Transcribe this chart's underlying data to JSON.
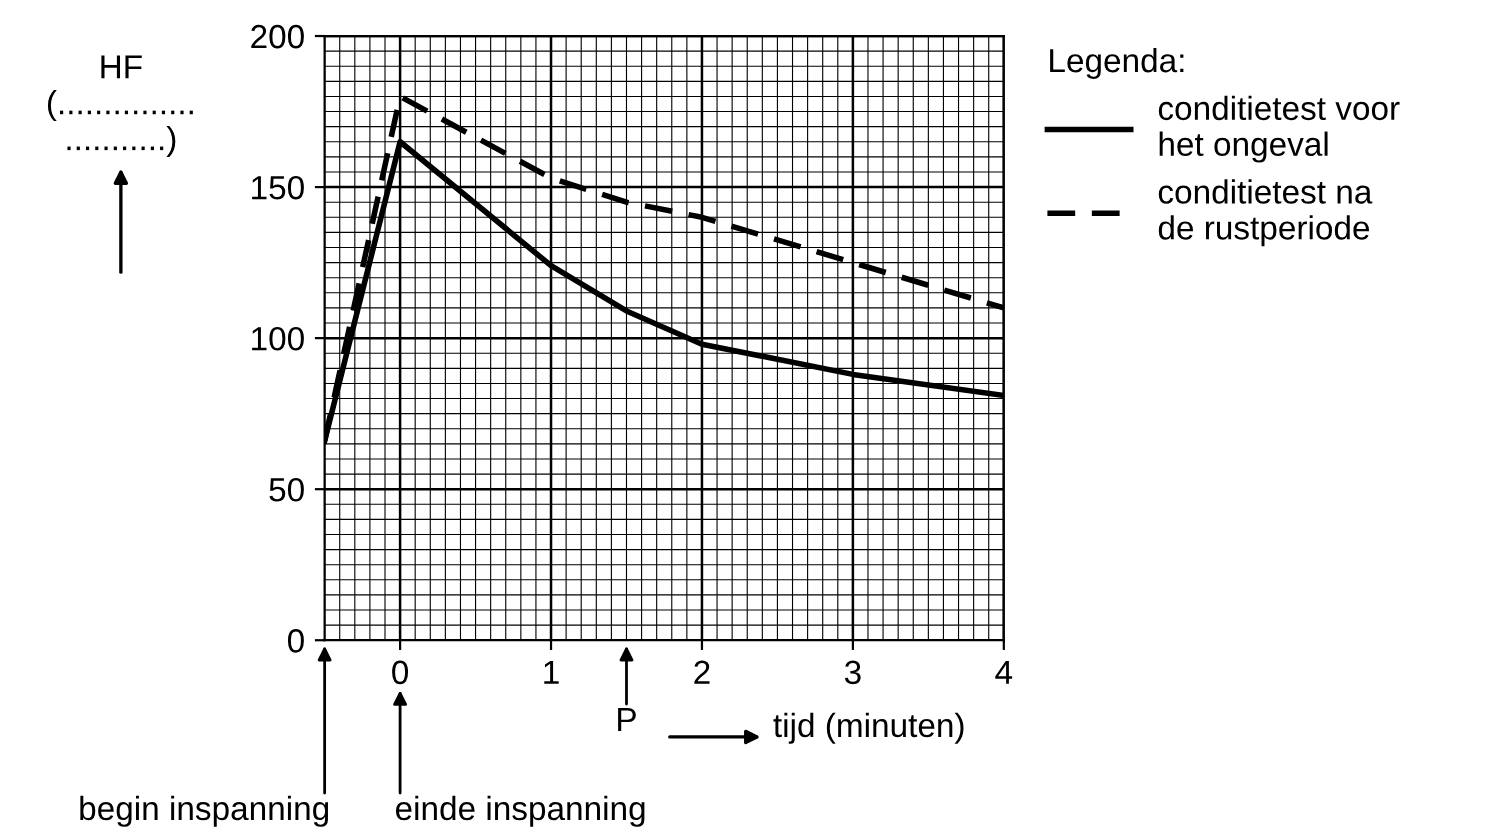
{
  "chart_data": {
    "type": "line",
    "ylabel": "HF\n(...............\n...........)",
    "xlabel": "tijd (minuten)",
    "legend_title": "Legenda:",
    "x": [
      -0.5,
      0,
      1,
      1.5,
      2,
      3,
      4
    ],
    "series": [
      {
        "name": "conditietest voor\nhet ongeval",
        "color": "#000000",
        "line_style": "solid",
        "values": [
          66,
          165,
          124,
          109,
          98,
          88,
          81
        ]
      },
      {
        "name": "conditietest na\nde rustperiode",
        "color": "#000000",
        "line_style": "dashed",
        "values": [
          66,
          180,
          153,
          145,
          140,
          125,
          110
        ]
      }
    ],
    "xlim": [
      -0.5,
      4
    ],
    "xticks": [
      0,
      1,
      2,
      3,
      4
    ],
    "ylim": [
      0,
      200
    ],
    "yticks": [
      0,
      50,
      100,
      150,
      200
    ],
    "grid": true,
    "legend": "right",
    "marker": "none",
    "annotations": [
      "P",
      "begin inspanning",
      "einde inspanning"
    ]
  }
}
